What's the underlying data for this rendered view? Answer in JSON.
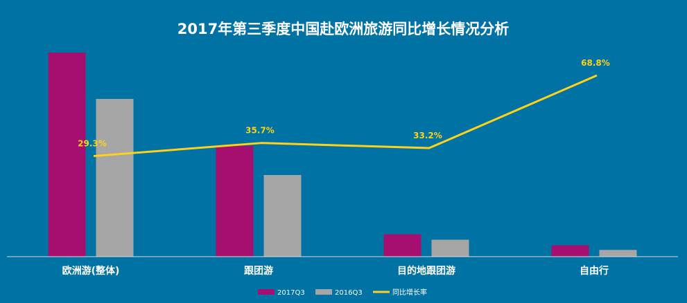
{
  "chart_data": {
    "type": "bar",
    "title": "2017年第三季度中国赴欧洲旅游同比增长情况分析",
    "categories": [
      "欧洲游(整体)",
      "跟团游",
      "目的地跟团游",
      "自由行"
    ],
    "series": [
      {
        "name": "2017Q3",
        "kind": "bar",
        "values": [
          100,
          54.3,
          11.0,
          5.6
        ],
        "color": "#a50f6f"
      },
      {
        "name": "2016Q3",
        "kind": "bar",
        "values": [
          77.3,
          40.0,
          8.3,
          3.3
        ],
        "color": "#a6a6a6"
      },
      {
        "name": "同比增长率",
        "kind": "line",
        "values": [
          29.3,
          35.7,
          33.2,
          68.8
        ],
        "labels": [
          "29.3%",
          "35.7%",
          "33.2%",
          "68.8%"
        ],
        "color": "#ffd21a"
      }
    ],
    "ylim": [
      0,
      100
    ],
    "line_ylim": [
      -20,
      80
    ],
    "grid": false,
    "legend": "bottom"
  }
}
